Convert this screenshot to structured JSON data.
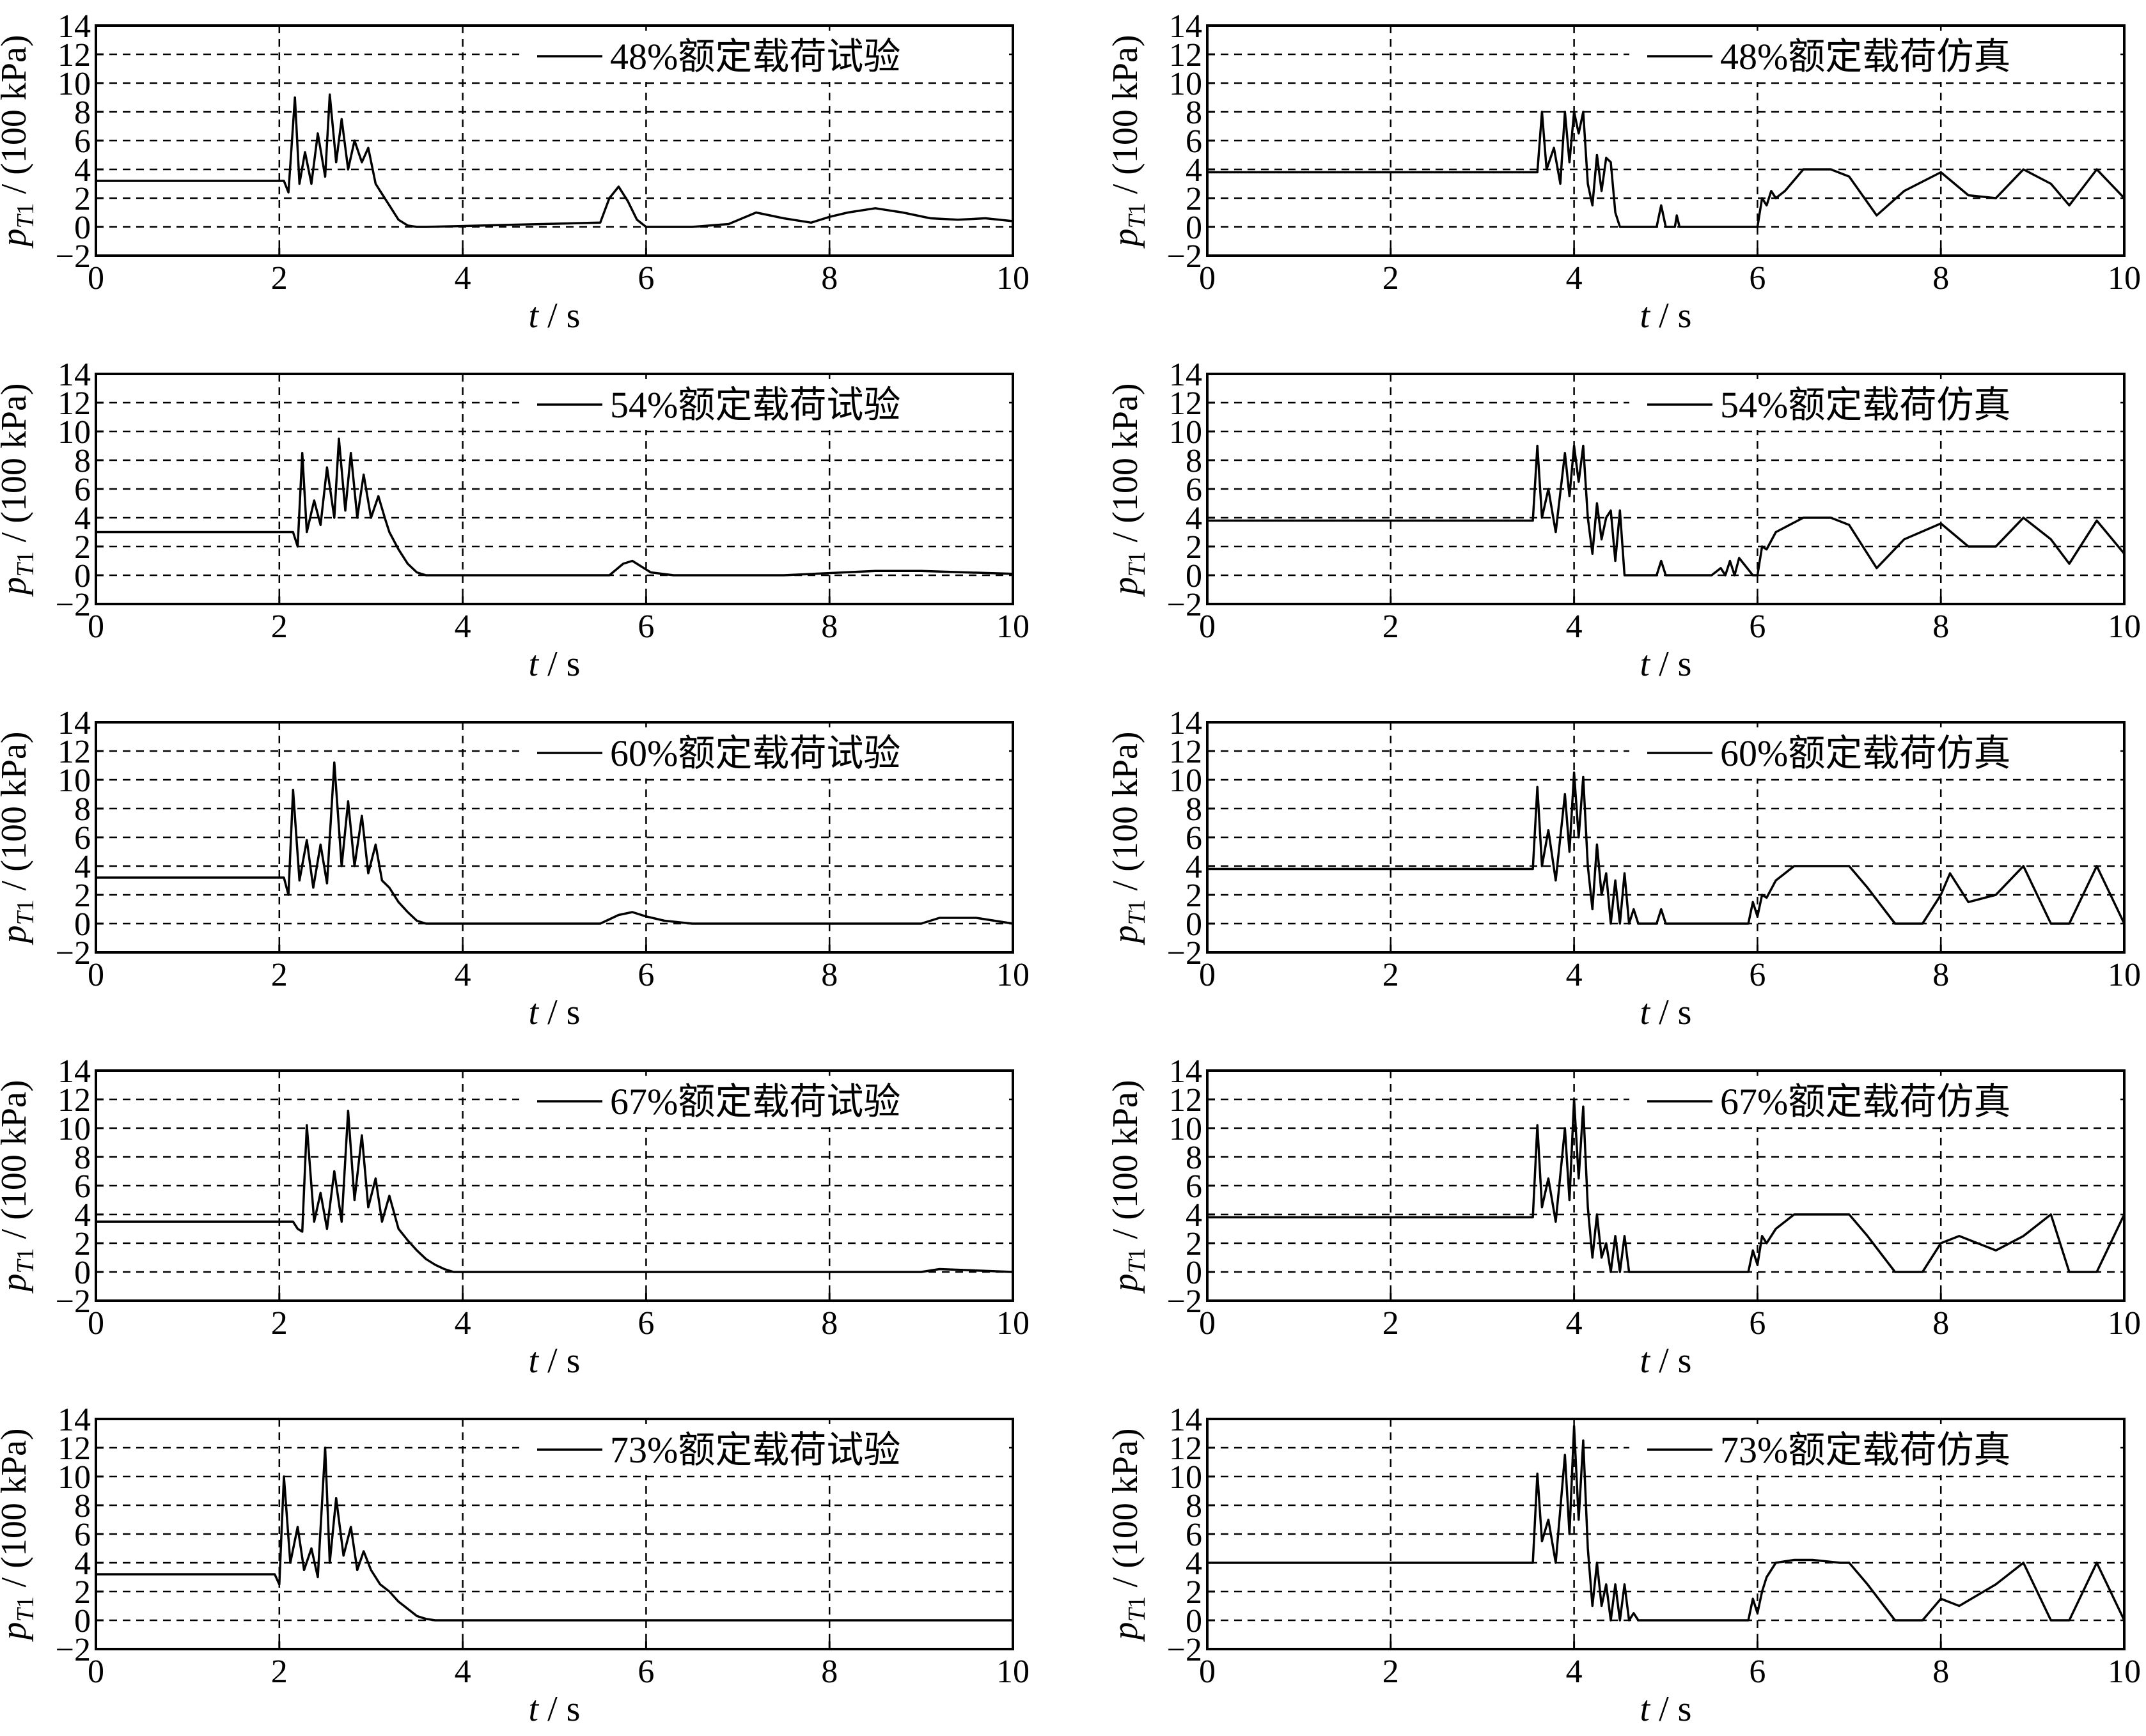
{
  "figure": {
    "ylabel": "p_T1 / (100 kPa)",
    "xlabel": "t / s"
  },
  "chart_data": [
    {
      "type": "line",
      "legend": "48%额定载荷试验",
      "column": 0,
      "row": 0,
      "xlim": [
        0,
        10
      ],
      "ylim": [
        -2,
        14
      ],
      "xticks": [
        0,
        2,
        4,
        6,
        8,
        10
      ],
      "yticks": [
        -2,
        0,
        2,
        4,
        6,
        8,
        10,
        12,
        14
      ],
      "grid": true,
      "x": [
        0,
        2.0,
        2.05,
        2.1,
        2.17,
        2.22,
        2.28,
        2.35,
        2.42,
        2.5,
        2.55,
        2.62,
        2.68,
        2.75,
        2.82,
        2.9,
        2.97,
        3.05,
        3.1,
        3.2,
        3.3,
        3.4,
        3.5,
        3.6,
        5.5,
        5.6,
        5.7,
        5.8,
        5.9,
        6.0,
        6.5,
        6.9,
        7.2,
        7.5,
        7.8,
        8.0,
        8.2,
        8.5,
        8.8,
        9.1,
        9.4,
        9.7,
        10.0
      ],
      "y": [
        3.2,
        3.2,
        3.2,
        2.4,
        9.0,
        3.0,
        5.2,
        3.0,
        6.5,
        3.5,
        9.2,
        4.5,
        7.5,
        4.0,
        6.0,
        4.5,
        5.5,
        3.0,
        2.5,
        1.5,
        0.5,
        0.1,
        0.0,
        0.0,
        0.3,
        2.0,
        2.8,
        1.8,
        0.5,
        0.0,
        0.0,
        0.2,
        1.0,
        0.6,
        0.3,
        0.7,
        1.0,
        1.3,
        1.0,
        0.6,
        0.5,
        0.6,
        0.4
      ]
    },
    {
      "type": "line",
      "legend": "48%额定载荷仿真",
      "column": 1,
      "row": 0,
      "xlim": [
        0,
        10
      ],
      "ylim": [
        -2,
        14
      ],
      "xticks": [
        0,
        2,
        4,
        6,
        8,
        10
      ],
      "yticks": [
        -2,
        0,
        2,
        4,
        6,
        8,
        10,
        12,
        14
      ],
      "grid": true,
      "x": [
        0,
        3.6,
        3.65,
        3.7,
        3.78,
        3.85,
        3.9,
        3.95,
        4.0,
        4.05,
        4.1,
        4.15,
        4.2,
        4.25,
        4.3,
        4.35,
        4.4,
        4.45,
        4.5,
        4.55,
        4.9,
        4.95,
        5.0,
        5.1,
        5.12,
        5.15,
        5.2,
        5.9,
        6.0,
        6.05,
        6.1,
        6.15,
        6.2,
        6.3,
        6.5,
        6.8,
        7.0,
        7.3,
        7.6,
        8.0,
        8.3,
        8.6,
        8.9,
        9.2,
        9.4,
        9.7,
        10.0
      ],
      "y": [
        3.8,
        3.8,
        8.0,
        4.0,
        5.5,
        3.0,
        8.0,
        4.5,
        8.0,
        6.5,
        8.0,
        3.0,
        1.5,
        5.0,
        2.5,
        4.8,
        4.5,
        1.0,
        0.0,
        0.0,
        0.0,
        1.5,
        0.0,
        0.0,
        0.8,
        0.0,
        0.0,
        0.0,
        0.0,
        2.0,
        1.5,
        2.5,
        2.0,
        2.5,
        4.0,
        4.0,
        3.5,
        0.8,
        2.5,
        3.8,
        2.2,
        2.0,
        4.0,
        3.0,
        1.5,
        4.0,
        2.0
      ]
    },
    {
      "type": "line",
      "legend": "54%额定载荷试验",
      "column": 0,
      "row": 1,
      "xlim": [
        0,
        10
      ],
      "ylim": [
        -2,
        14
      ],
      "xticks": [
        0,
        2,
        4,
        6,
        8,
        10
      ],
      "yticks": [
        -2,
        0,
        2,
        4,
        6,
        8,
        10,
        12,
        14
      ],
      "grid": true,
      "x": [
        0,
        2.15,
        2.2,
        2.25,
        2.3,
        2.38,
        2.45,
        2.52,
        2.6,
        2.65,
        2.72,
        2.78,
        2.85,
        2.92,
        3.0,
        3.08,
        3.15,
        3.2,
        3.3,
        3.4,
        3.5,
        3.6,
        3.7,
        5.6,
        5.75,
        5.85,
        5.95,
        6.05,
        6.3,
        7.5,
        8.5,
        9.0,
        10.0
      ],
      "y": [
        3.0,
        3.0,
        2.0,
        8.5,
        3.0,
        5.2,
        3.5,
        7.5,
        4.0,
        9.5,
        4.5,
        8.5,
        4.0,
        7.0,
        4.0,
        5.5,
        4.0,
        3.0,
        1.8,
        0.8,
        0.2,
        0.0,
        0.0,
        0.0,
        0.8,
        1.0,
        0.6,
        0.2,
        0.0,
        0.0,
        0.3,
        0.3,
        0.1
      ]
    },
    {
      "type": "line",
      "legend": "54%额定载荷仿真",
      "column": 1,
      "row": 1,
      "xlim": [
        0,
        10
      ],
      "ylim": [
        -2,
        14
      ],
      "xticks": [
        0,
        2,
        4,
        6,
        8,
        10
      ],
      "yticks": [
        -2,
        0,
        2,
        4,
        6,
        8,
        10,
        12,
        14
      ],
      "grid": true,
      "x": [
        0,
        3.5,
        3.55,
        3.6,
        3.65,
        3.72,
        3.8,
        3.9,
        3.95,
        4.0,
        4.05,
        4.1,
        4.15,
        4.2,
        4.25,
        4.3,
        4.35,
        4.4,
        4.45,
        4.5,
        4.55,
        4.6,
        4.9,
        4.95,
        5.0,
        5.5,
        5.6,
        5.65,
        5.7,
        5.75,
        5.8,
        5.95,
        6.0,
        6.05,
        6.1,
        6.2,
        6.5,
        6.8,
        7.0,
        7.3,
        7.6,
        8.0,
        8.3,
        8.6,
        8.9,
        9.2,
        9.4,
        9.7,
        10.0
      ],
      "y": [
        3.8,
        3.8,
        3.8,
        9.0,
        4.0,
        6.0,
        3.0,
        8.5,
        5.5,
        9.0,
        6.5,
        9.0,
        4.0,
        1.5,
        5.0,
        2.5,
        4.0,
        4.5,
        1.0,
        4.5,
        0.0,
        0.0,
        0.0,
        1.0,
        0.0,
        0.0,
        0.5,
        0.0,
        1.0,
        0.0,
        1.2,
        0.0,
        0.0,
        2.0,
        1.8,
        3.0,
        4.0,
        4.0,
        3.5,
        0.5,
        2.5,
        3.6,
        2.0,
        2.0,
        4.0,
        2.5,
        0.8,
        3.8,
        1.5
      ]
    },
    {
      "type": "line",
      "legend": "60%额定载荷试验",
      "column": 0,
      "row": 2,
      "xlim": [
        0,
        10
      ],
      "ylim": [
        -2,
        14
      ],
      "xticks": [
        0,
        2,
        4,
        6,
        8,
        10
      ],
      "yticks": [
        -2,
        0,
        2,
        4,
        6,
        8,
        10,
        12,
        14
      ],
      "grid": true,
      "x": [
        0,
        2.05,
        2.1,
        2.15,
        2.22,
        2.3,
        2.37,
        2.45,
        2.52,
        2.6,
        2.68,
        2.75,
        2.82,
        2.9,
        2.97,
        3.05,
        3.12,
        3.2,
        3.3,
        3.4,
        3.5,
        3.6,
        3.7,
        5.5,
        5.7,
        5.85,
        6.0,
        6.2,
        6.5,
        9.0,
        9.2,
        9.6,
        10.0
      ],
      "y": [
        3.2,
        3.2,
        2.0,
        9.3,
        3.0,
        5.8,
        2.5,
        5.5,
        2.8,
        11.2,
        4.0,
        8.5,
        4.0,
        7.5,
        3.5,
        5.5,
        3.0,
        2.5,
        1.5,
        0.8,
        0.2,
        0.0,
        0.0,
        0.0,
        0.6,
        0.8,
        0.5,
        0.2,
        0.0,
        0.0,
        0.4,
        0.4,
        0.0
      ]
    },
    {
      "type": "line",
      "legend": "60%额定载荷仿真",
      "column": 1,
      "row": 2,
      "xlim": [
        0,
        10
      ],
      "ylim": [
        -2,
        14
      ],
      "xticks": [
        0,
        2,
        4,
        6,
        8,
        10
      ],
      "yticks": [
        -2,
        0,
        2,
        4,
        6,
        8,
        10,
        12,
        14
      ],
      "grid": true,
      "x": [
        0,
        3.55,
        3.6,
        3.65,
        3.72,
        3.8,
        3.9,
        3.95,
        4.0,
        4.05,
        4.1,
        4.15,
        4.2,
        4.25,
        4.3,
        4.35,
        4.4,
        4.45,
        4.5,
        4.55,
        4.6,
        4.65,
        4.7,
        4.9,
        4.95,
        5.0,
        5.9,
        5.95,
        6.0,
        6.05,
        6.1,
        6.2,
        6.4,
        6.6,
        6.9,
        7.0,
        7.2,
        7.5,
        7.8,
        8.0,
        8.1,
        8.3,
        8.6,
        8.9,
        9.2,
        9.4,
        9.7,
        10.0
      ],
      "y": [
        3.8,
        3.8,
        9.5,
        4.0,
        6.5,
        3.0,
        9.0,
        5.0,
        10.5,
        6.0,
        10.2,
        4.0,
        1.0,
        5.5,
        2.0,
        3.5,
        0.0,
        3.0,
        0.0,
        3.5,
        0.0,
        1.0,
        0.0,
        0.0,
        1.0,
        0.0,
        0.0,
        1.5,
        0.5,
        2.0,
        1.8,
        3.0,
        4.0,
        4.0,
        4.0,
        4.0,
        2.5,
        0.0,
        0.0,
        2.0,
        3.5,
        1.5,
        2.0,
        4.0,
        0.0,
        0.0,
        4.0,
        0.0
      ]
    },
    {
      "type": "line",
      "legend": "67%额定载荷试验",
      "column": 0,
      "row": 3,
      "xlim": [
        0,
        10
      ],
      "ylim": [
        -2,
        14
      ],
      "xticks": [
        0,
        2,
        4,
        6,
        8,
        10
      ],
      "yticks": [
        -2,
        0,
        2,
        4,
        6,
        8,
        10,
        12,
        14
      ],
      "grid": true,
      "x": [
        0,
        2.15,
        2.2,
        2.25,
        2.3,
        2.38,
        2.45,
        2.52,
        2.6,
        2.68,
        2.75,
        2.82,
        2.9,
        2.97,
        3.05,
        3.12,
        3.2,
        3.3,
        3.4,
        3.5,
        3.6,
        3.7,
        3.8,
        3.9,
        4.0,
        9.0,
        9.2,
        10.0
      ],
      "y": [
        3.5,
        3.5,
        3.0,
        2.8,
        10.2,
        3.5,
        5.5,
        3.0,
        7.0,
        3.5,
        11.2,
        5.0,
        9.5,
        4.5,
        6.5,
        3.5,
        5.3,
        3.0,
        2.2,
        1.5,
        0.9,
        0.5,
        0.2,
        0.0,
        0.0,
        0.0,
        0.2,
        0.0
      ]
    },
    {
      "type": "line",
      "legend": "67%额定载荷仿真",
      "column": 1,
      "row": 3,
      "xlim": [
        0,
        10
      ],
      "ylim": [
        -2,
        14
      ],
      "xticks": [
        0,
        2,
        4,
        6,
        8,
        10
      ],
      "yticks": [
        -2,
        0,
        2,
        4,
        6,
        8,
        10,
        12,
        14
      ],
      "grid": true,
      "x": [
        0,
        3.55,
        3.6,
        3.65,
        3.72,
        3.8,
        3.9,
        3.95,
        4.0,
        4.05,
        4.1,
        4.15,
        4.2,
        4.25,
        4.3,
        4.35,
        4.4,
        4.45,
        4.5,
        4.55,
        4.6,
        4.65,
        4.7,
        5.9,
        5.95,
        6.0,
        6.05,
        6.1,
        6.2,
        6.4,
        6.6,
        6.9,
        7.0,
        7.2,
        7.5,
        7.8,
        8.0,
        8.2,
        8.6,
        8.9,
        9.2,
        9.4,
        9.7,
        10.0
      ],
      "y": [
        3.8,
        3.8,
        10.2,
        4.5,
        6.5,
        3.5,
        10.0,
        5.0,
        12.0,
        6.5,
        11.5,
        4.5,
        1.0,
        4.0,
        1.0,
        2.0,
        0.0,
        2.5,
        0.0,
        2.5,
        0.0,
        0.0,
        0.0,
        0.0,
        1.5,
        0.5,
        2.5,
        2.0,
        3.0,
        4.0,
        4.0,
        4.0,
        4.0,
        2.5,
        0.0,
        0.0,
        2.0,
        2.5,
        1.5,
        2.5,
        4.0,
        0.0,
        0.0,
        4.0
      ]
    },
    {
      "type": "line",
      "legend": "73%额定载荷试验",
      "column": 0,
      "row": 4,
      "xlim": [
        0,
        10
      ],
      "ylim": [
        -2,
        14
      ],
      "xticks": [
        0,
        2,
        4,
        6,
        8,
        10
      ],
      "yticks": [
        -2,
        0,
        2,
        4,
        6,
        8,
        10,
        12,
        14
      ],
      "grid": true,
      "x": [
        0,
        1.95,
        2.0,
        2.05,
        2.12,
        2.2,
        2.27,
        2.35,
        2.42,
        2.5,
        2.55,
        2.62,
        2.7,
        2.78,
        2.85,
        2.92,
        3.0,
        3.1,
        3.2,
        3.3,
        3.4,
        3.5,
        3.6,
        3.7,
        3.8,
        10.0
      ],
      "y": [
        3.2,
        3.2,
        2.5,
        10.0,
        4.0,
        6.5,
        3.5,
        5.0,
        3.0,
        12.0,
        4.0,
        8.5,
        4.5,
        6.5,
        3.5,
        4.8,
        3.5,
        2.5,
        2.0,
        1.3,
        0.8,
        0.3,
        0.1,
        0.0,
        0.0,
        0.0
      ]
    },
    {
      "type": "line",
      "legend": "73%额定载荷仿真",
      "column": 1,
      "row": 4,
      "xlim": [
        0,
        10
      ],
      "ylim": [
        -2,
        14
      ],
      "xticks": [
        0,
        2,
        4,
        6,
        8,
        10
      ],
      "yticks": [
        -2,
        0,
        2,
        4,
        6,
        8,
        10,
        12,
        14
      ],
      "grid": true,
      "x": [
        0,
        3.55,
        3.6,
        3.65,
        3.72,
        3.8,
        3.9,
        3.95,
        4.0,
        4.05,
        4.1,
        4.15,
        4.2,
        4.25,
        4.3,
        4.35,
        4.4,
        4.45,
        4.5,
        4.55,
        4.6,
        4.65,
        4.7,
        4.9,
        5.9,
        5.95,
        6.0,
        6.05,
        6.1,
        6.2,
        6.4,
        6.6,
        6.9,
        7.0,
        7.2,
        7.5,
        7.8,
        8.0,
        8.2,
        8.6,
        8.9,
        9.2,
        9.4,
        9.7,
        10.0
      ],
      "y": [
        4.0,
        4.0,
        10.2,
        5.5,
        7.0,
        4.0,
        11.5,
        6.0,
        13.5,
        7.0,
        12.5,
        5.0,
        1.0,
        4.0,
        1.0,
        2.5,
        0.0,
        2.5,
        0.0,
        2.5,
        0.0,
        0.5,
        0.0,
        0.0,
        0.0,
        1.5,
        0.5,
        2.0,
        3.0,
        4.0,
        4.2,
        4.2,
        4.0,
        4.0,
        2.5,
        0.0,
        0.0,
        1.5,
        1.0,
        2.5,
        4.0,
        0.0,
        0.0,
        4.0,
        0.0
      ]
    }
  ]
}
